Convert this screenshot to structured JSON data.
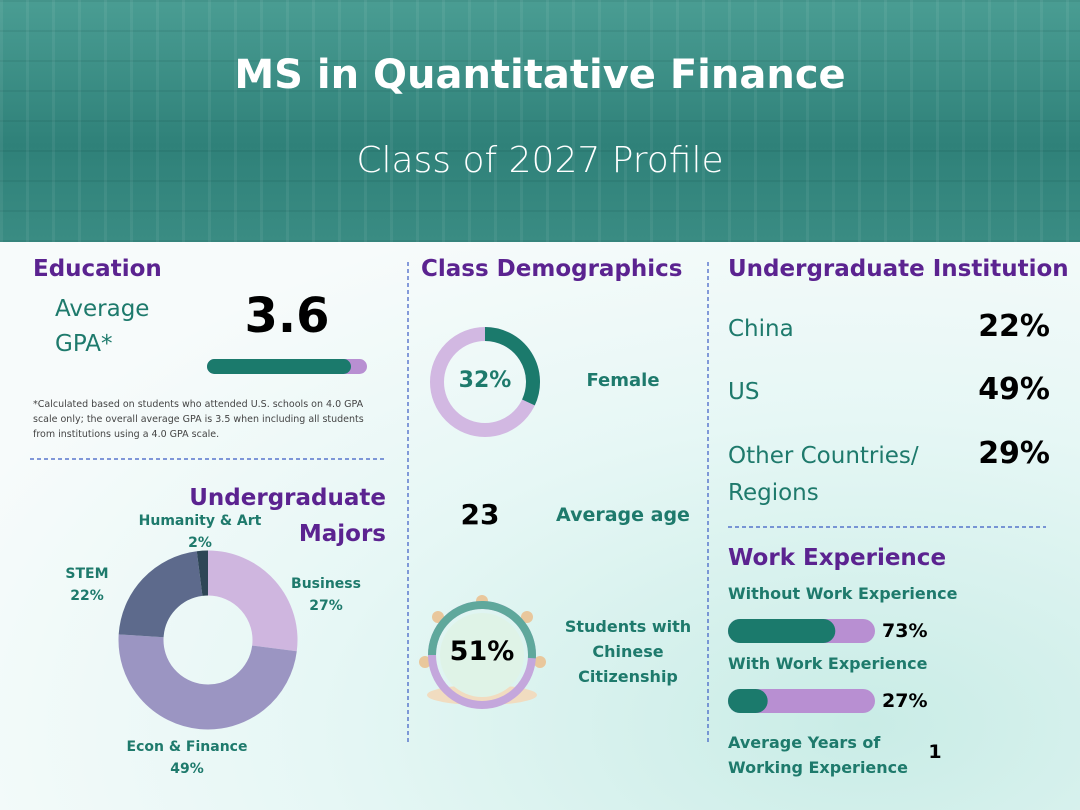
{
  "header": {
    "title": "MS in Quantitative Finance",
    "subtitle": "Class of 2027 Profile"
  },
  "education": {
    "title": "Education",
    "gpa_label": "Average GPA*",
    "gpa": 3.6,
    "gpa_scale": 4.0,
    "footnote": "*Calculated based on students who attended U.S. schools on 4.0 GPA scale only; the overall average GPA is 3.5 when including all students from institutions using a 4.0 GPA scale."
  },
  "majors": {
    "title": "Undergraduate Majors",
    "items": [
      {
        "name": "Business",
        "value": 27,
        "label": "27%",
        "color": "#cfb6df"
      },
      {
        "name": "Econ & Finance",
        "value": 49,
        "label": "49%",
        "color": "#9b95c2"
      },
      {
        "name": "STEM",
        "value": 22,
        "label": "22%",
        "color": "#5d6a8c"
      },
      {
        "name": "Humanity & Art",
        "value": 2,
        "label": "2%",
        "color": "#2e4656"
      }
    ]
  },
  "demographics": {
    "title": "Class Demographics",
    "female": {
      "value": 32,
      "label": "32%",
      "text": "Female"
    },
    "age": {
      "value": 23,
      "text": "Average age"
    },
    "citizenship": {
      "value": 51,
      "label": "51%",
      "text": "Students with Chinese Citizenship"
    }
  },
  "institution": {
    "title": "Undergraduate Institution",
    "items": [
      {
        "name": "China",
        "value": 22,
        "label": "22%"
      },
      {
        "name": "US",
        "value": 49,
        "label": "49%"
      },
      {
        "name": "Other Countries/ Regions",
        "value": 29,
        "label": "29%"
      }
    ]
  },
  "work": {
    "title": "Work Experience",
    "items": [
      {
        "name": "Without Work Experience",
        "value": 73,
        "label": "73%"
      },
      {
        "name": "With Work Experience",
        "value": 27,
        "label": "27%"
      }
    ],
    "avg_years_label": "Average Years of Working Experience",
    "avg_years": 1
  }
}
